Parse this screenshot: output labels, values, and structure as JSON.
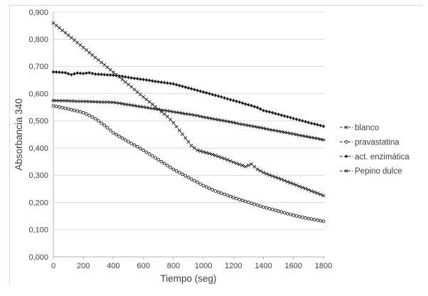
{
  "figure": {
    "kind": "excel-style line chart, black and white",
    "background": "#ffffff",
    "border_color": "#d8d8d8"
  },
  "chart_data": {
    "type": "line",
    "title": "",
    "xlabel": "Tiempo (seg)",
    "ylabel": "Absorbancia 340",
    "xlim": [
      0,
      1800
    ],
    "ylim": [
      0.0,
      0.9
    ],
    "grid": "horizontal",
    "legend_position": "right",
    "decimal_separator": ",",
    "x_ticks": [
      0,
      200,
      400,
      600,
      800,
      1000,
      1200,
      1400,
      1600,
      1800
    ],
    "x_tick_labels": [
      "0",
      "200",
      "400",
      "600",
      "800",
      "1000",
      "1200",
      "1400",
      "1600",
      "1800"
    ],
    "y_ticks": [
      0.0,
      0.1,
      0.2,
      0.3,
      0.4,
      0.5,
      0.6,
      0.7,
      0.8,
      0.9
    ],
    "y_tick_labels": [
      "0,000",
      "0,100",
      "0,200",
      "0,300",
      "0,400",
      "0,500",
      "0,600",
      "0,700",
      "0,800",
      "0,900"
    ],
    "x": [
      0,
      40,
      80,
      120,
      160,
      200,
      240,
      280,
      320,
      360,
      400,
      440,
      480,
      520,
      560,
      600,
      640,
      680,
      720,
      760,
      800,
      840,
      880,
      920,
      960,
      1000,
      1040,
      1080,
      1120,
      1160,
      1200,
      1240,
      1280,
      1320,
      1360,
      1400,
      1440,
      1480,
      1520,
      1560,
      1600,
      1640,
      1680,
      1720,
      1760,
      1800
    ],
    "series": [
      {
        "name": "blanco",
        "marker": "x-cross",
        "values": [
          0.86,
          0.842,
          0.824,
          0.806,
          0.788,
          0.77,
          0.751,
          0.733,
          0.715,
          0.697,
          0.679,
          0.661,
          0.643,
          0.625,
          0.606,
          0.588,
          0.57,
          0.552,
          0.534,
          0.516,
          0.493,
          0.465,
          0.437,
          0.409,
          0.392,
          0.386,
          0.38,
          0.373,
          0.365,
          0.357,
          0.348,
          0.34,
          0.332,
          0.341,
          0.322,
          0.31,
          0.301,
          0.293,
          0.285,
          0.276,
          0.268,
          0.259,
          0.251,
          0.242,
          0.234,
          0.225
        ]
      },
      {
        "name": "pravastatina",
        "marker": "open-circle",
        "values": [
          0.555,
          0.551,
          0.546,
          0.541,
          0.536,
          0.53,
          0.52,
          0.508,
          0.492,
          0.475,
          0.456,
          0.443,
          0.43,
          0.417,
          0.405,
          0.392,
          0.378,
          0.364,
          0.35,
          0.336,
          0.322,
          0.31,
          0.298,
          0.286,
          0.274,
          0.262,
          0.252,
          0.242,
          0.234,
          0.226,
          0.218,
          0.211,
          0.204,
          0.197,
          0.19,
          0.183,
          0.177,
          0.171,
          0.165,
          0.159,
          0.153,
          0.148,
          0.143,
          0.139,
          0.135,
          0.131
        ]
      },
      {
        "name": "act. enzimática",
        "marker": "filled-diamond",
        "values": [
          0.68,
          0.679,
          0.677,
          0.67,
          0.676,
          0.674,
          0.677,
          0.672,
          0.671,
          0.669,
          0.668,
          0.665,
          0.662,
          0.658,
          0.655,
          0.652,
          0.649,
          0.645,
          0.642,
          0.639,
          0.636,
          0.63,
          0.624,
          0.618,
          0.612,
          0.606,
          0.6,
          0.594,
          0.588,
          0.581,
          0.575,
          0.569,
          0.562,
          0.556,
          0.549,
          0.538,
          0.533,
          0.527,
          0.521,
          0.515,
          0.509,
          0.503,
          0.497,
          0.491,
          0.486,
          0.48
        ]
      },
      {
        "name": "Pepino dulce",
        "marker": "asterisk",
        "values": [
          0.575,
          0.574,
          0.574,
          0.573,
          0.572,
          0.572,
          0.571,
          0.57,
          0.569,
          0.569,
          0.568,
          0.565,
          0.561,
          0.558,
          0.554,
          0.551,
          0.547,
          0.544,
          0.54,
          0.537,
          0.533,
          0.53,
          0.526,
          0.523,
          0.519,
          0.514,
          0.51,
          0.506,
          0.502,
          0.498,
          0.494,
          0.489,
          0.485,
          0.481,
          0.477,
          0.473,
          0.468,
          0.464,
          0.46,
          0.456,
          0.452,
          0.447,
          0.443,
          0.439,
          0.435,
          0.43
        ]
      }
    ],
    "colors": {
      "line": "#1c1c1c",
      "marker": "#1c1c1c",
      "grid": "#dcdcdc",
      "axis": "#b3b3b3",
      "text": "#3f3f3f"
    }
  }
}
